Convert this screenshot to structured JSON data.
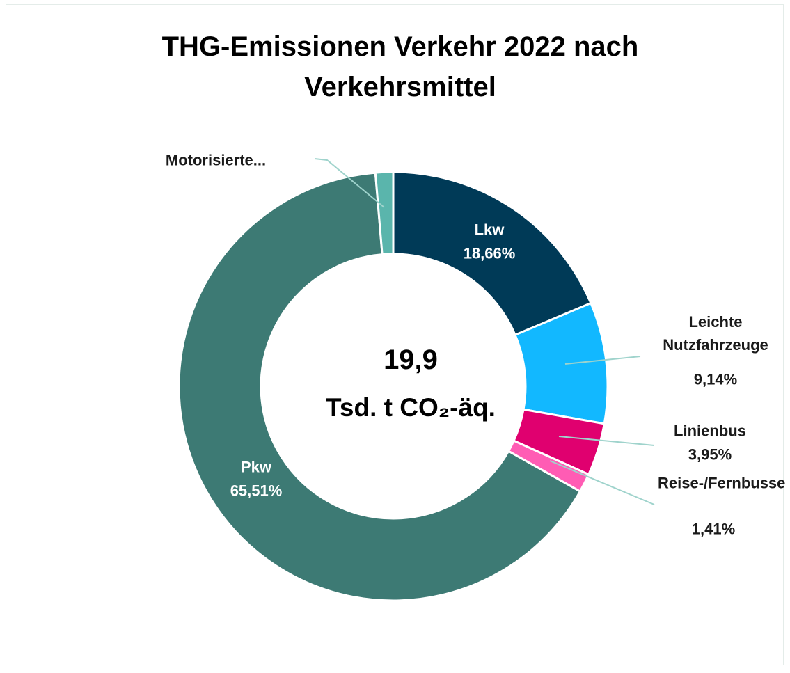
{
  "chart_data": {
    "type": "donut",
    "title": "THG-Emissionen Verkehr 2022 nach Verkehrsmittel",
    "center_label": [
      "19,9",
      "Tsd. t CO₂-äq."
    ],
    "categories": [
      "Lkw",
      "Leichte Nutzfahrzeuge",
      "Linienbus",
      "Reise-/Fernbusse",
      "Pkw",
      "Motorisierte..."
    ],
    "values": [
      18.66,
      9.14,
      3.95,
      1.41,
      65.51,
      1.33
    ],
    "value_labels": [
      "18,66%",
      "9,14%",
      "3,95%",
      "1,41%",
      "65,51%",
      null
    ],
    "colors": [
      "#003a57",
      "#12b8ff",
      "#e0006f",
      "#ff5cb4",
      "#3d7a74",
      "#5ab5ac"
    ]
  }
}
